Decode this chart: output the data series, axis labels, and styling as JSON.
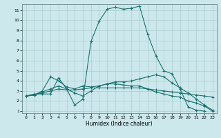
{
  "xlabel": "Humidex (Indice chaleur)",
  "bg_color": "#cce8ec",
  "grid_color": "#aacccc",
  "line_color": "#1a7070",
  "xlim": [
    -0.5,
    23.5
  ],
  "ylim": [
    0.8,
    11.6
  ],
  "yticks": [
    1,
    2,
    3,
    4,
    5,
    6,
    7,
    8,
    9,
    10,
    11
  ],
  "xticks": [
    0,
    1,
    2,
    3,
    4,
    5,
    6,
    7,
    8,
    9,
    10,
    11,
    12,
    13,
    14,
    15,
    16,
    17,
    18,
    19,
    20,
    21,
    22,
    23
  ],
  "lines": [
    {
      "x": [
        0,
        1,
        2,
        3,
        4,
        5,
        6,
        7,
        8,
        9,
        10,
        11,
        12,
        13,
        14,
        15,
        16,
        17,
        18,
        19,
        20,
        21,
        22
      ],
      "y": [
        2.5,
        2.7,
        2.7,
        2.7,
        4.3,
        3.2,
        1.6,
        2.2,
        7.9,
        9.9,
        11.1,
        11.3,
        11.1,
        11.2,
        11.4,
        8.6,
        6.5,
        5.0,
        4.7,
        3.2,
        1.4,
        1.1,
        1.0
      ]
    },
    {
      "x": [
        0,
        1,
        2,
        3,
        4,
        5,
        6,
        7,
        8,
        9,
        10,
        11,
        12,
        13,
        14,
        15,
        16,
        17,
        18,
        19,
        20,
        21,
        22,
        23
      ],
      "y": [
        2.5,
        2.6,
        3.0,
        4.4,
        4.0,
        3.4,
        3.2,
        3.5,
        3.4,
        3.5,
        3.7,
        3.9,
        3.9,
        4.0,
        4.2,
        4.4,
        4.6,
        4.4,
        3.8,
        3.3,
        2.8,
        2.2,
        1.6,
        1.1
      ]
    },
    {
      "x": [
        0,
        1,
        2,
        3,
        4,
        5,
        6,
        7,
        8,
        9,
        10,
        11,
        12,
        13,
        14,
        15,
        16,
        17,
        18,
        19,
        20,
        21,
        22,
        23
      ],
      "y": [
        2.5,
        2.6,
        2.8,
        3.0,
        3.2,
        3.1,
        3.1,
        3.2,
        3.3,
        3.3,
        3.3,
        3.3,
        3.3,
        3.3,
        3.3,
        3.2,
        3.1,
        3.0,
        2.9,
        2.8,
        2.7,
        2.6,
        2.5,
        2.4
      ]
    },
    {
      "x": [
        0,
        1,
        2,
        3,
        4,
        5,
        6,
        7,
        8,
        9,
        10,
        11,
        12,
        13,
        14,
        15,
        16,
        17,
        18,
        19,
        20,
        21,
        22,
        23
      ],
      "y": [
        2.5,
        2.6,
        2.9,
        3.2,
        3.5,
        3.2,
        2.8,
        2.5,
        3.0,
        3.5,
        3.7,
        3.7,
        3.6,
        3.5,
        3.5,
        3.2,
        2.9,
        2.7,
        2.5,
        2.4,
        2.0,
        1.8,
        1.5,
        1.0
      ]
    }
  ]
}
